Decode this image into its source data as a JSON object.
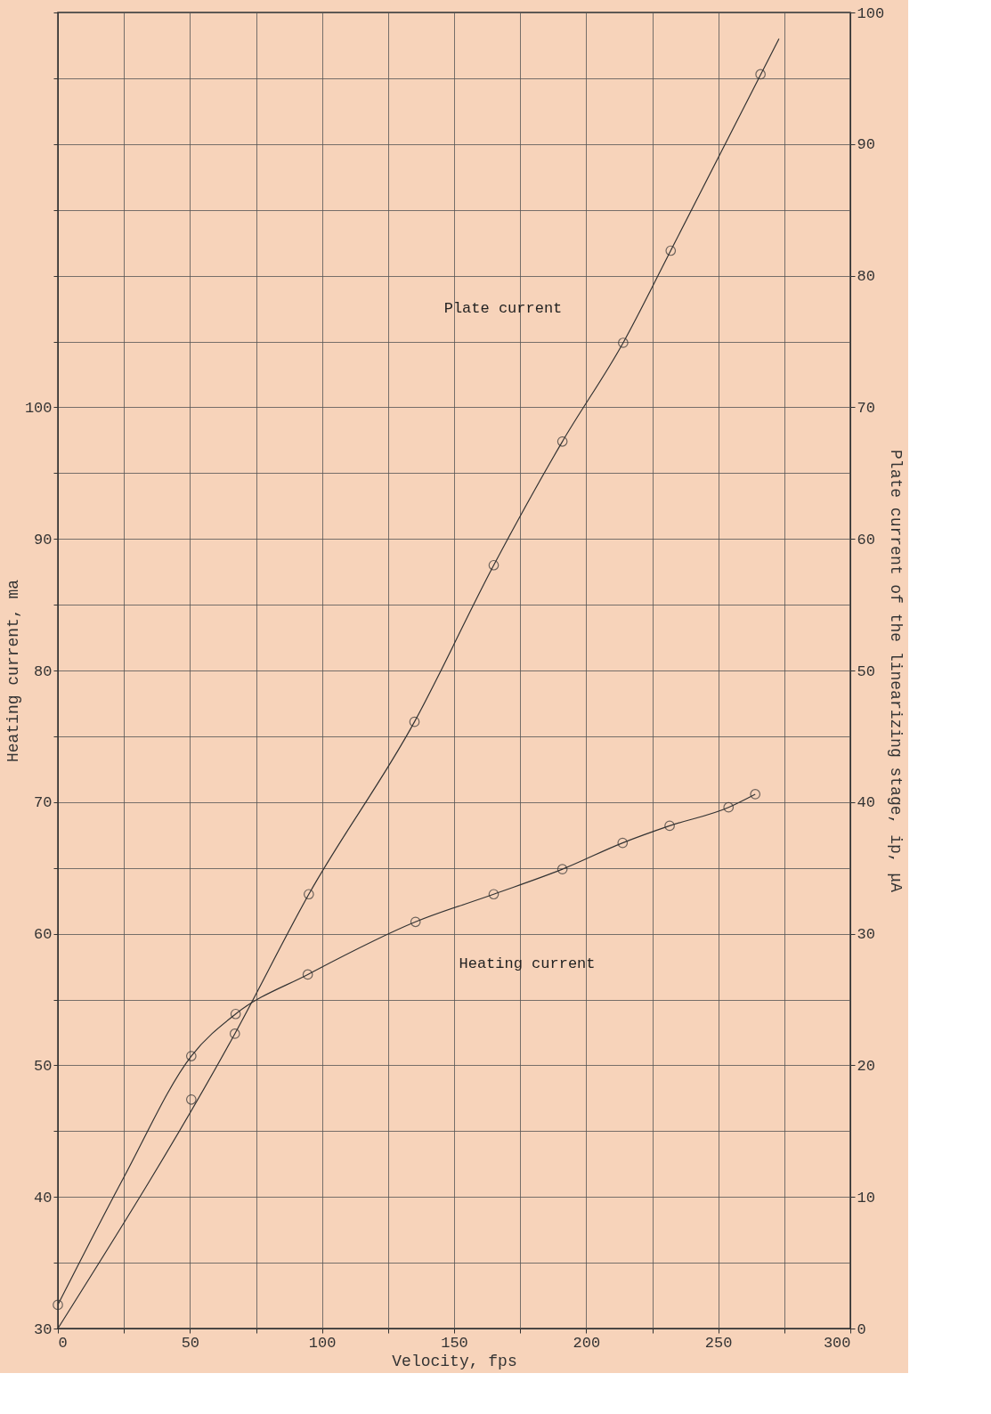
{
  "chart_data": {
    "type": "scatter",
    "xlabel": "Velocity, fps",
    "ylabel": "Heating current, ma",
    "y2label": "Plate current of the linearizing stage, ip, μA",
    "xlim": [
      0,
      300
    ],
    "ylim": [
      30,
      130
    ],
    "y2lim": [
      0,
      100
    ],
    "xticks": [
      0,
      {
        "value": 25,
        "label": null
      },
      50,
      {
        "value": 75,
        "label": null
      },
      100,
      {
        "value": 125,
        "label": null
      },
      150,
      {
        "value": 175,
        "label": null
      },
      200,
      {
        "value": 225,
        "label": null
      },
      250,
      {
        "value": 275,
        "label": null
      },
      300
    ],
    "yticks": [
      30,
      {
        "value": 35,
        "label": null
      },
      40,
      {
        "value": 45,
        "label": null
      },
      50,
      {
        "value": 55,
        "label": null
      },
      60,
      {
        "value": 65,
        "label": null
      },
      70,
      {
        "value": 75,
        "label": null
      },
      80,
      {
        "value": 85,
        "label": null
      },
      90,
      {
        "value": 95,
        "label": null
      },
      100,
      {
        "value": 105,
        "label": null
      },
      {
        "value": 110,
        "label": null
      },
      {
        "value": 115,
        "label": null
      },
      {
        "value": 120,
        "label": null
      },
      {
        "value": 125,
        "label": null
      },
      {
        "value": 130,
        "label": null
      }
    ],
    "y2ticks": [
      0,
      10,
      20,
      30,
      40,
      50,
      60,
      70,
      80,
      90,
      100
    ],
    "grid": true,
    "marker": "circle",
    "line_style": "solid",
    "series": [
      {
        "color": "#333333",
        "x": [
          0,
          50.5,
          67.3,
          94.6,
          135.4,
          165,
          191,
          213.8,
          231.6,
          253.9,
          264
        ],
        "values": [
          31.8,
          50.7,
          53.9,
          56.9,
          60.9,
          63,
          64.9,
          66.9,
          68.2,
          69.6,
          70.6
        ]
      },
      {
        "axis": "y2",
        "color": "#333333",
        "x": [
          50.5,
          67,
          95,
          135,
          165,
          191,
          214,
          232,
          266
        ],
        "values": [
          17.4,
          22.4,
          33,
          46.1,
          58,
          67.4,
          74.9,
          81.9,
          95.3
        ]
      },
      {
        "type": "line",
        "marker": "none",
        "color": "#333333",
        "x": [
          0,
          25,
          50.5,
          67.3,
          94.6,
          135.4,
          165,
          191,
          213.8,
          231.6,
          253.9,
          264
        ],
        "values": [
          31.8,
          41.5,
          50.7,
          53.9,
          56.9,
          60.9,
          63,
          64.9,
          66.9,
          68.2,
          69.6,
          70.6
        ]
      },
      {
        "type": "line",
        "marker": "none",
        "axis": "y2",
        "color": "#333333",
        "x": [
          0,
          67,
          95,
          135,
          165,
          191,
          214,
          232,
          273
        ],
        "values": [
          0,
          22.4,
          33,
          46.1,
          58,
          67.4,
          74.9,
          81.9,
          98
        ]
      }
    ],
    "annotations": [
      "Plate current",
      "Heating current"
    ]
  }
}
